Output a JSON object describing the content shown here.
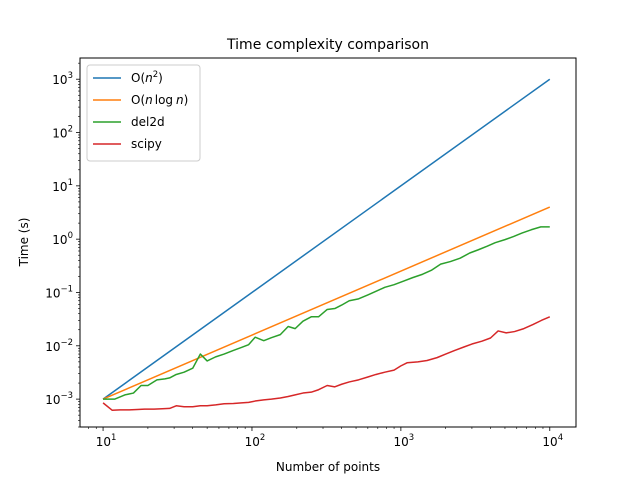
{
  "chart_data": {
    "type": "line",
    "title": "Time complexity comparison",
    "xlabel": "Number of points",
    "ylabel": "Time (s)",
    "xscale": "log",
    "yscale": "log",
    "xlim": [
      7.0,
      15000
    ],
    "ylim": [
      0.0003,
      2500
    ],
    "grid": false,
    "legend_position": "top-left",
    "x_ticks": [
      {
        "value": 10,
        "base": "10",
        "exp": "1"
      },
      {
        "value": 100,
        "base": "10",
        "exp": "2"
      },
      {
        "value": 1000,
        "base": "10",
        "exp": "3"
      },
      {
        "value": 10000,
        "base": "10",
        "exp": "4"
      }
    ],
    "y_ticks": [
      {
        "value": 0.001,
        "base": "10",
        "exp": "−3"
      },
      {
        "value": 0.01,
        "base": "10",
        "exp": "−2"
      },
      {
        "value": 0.1,
        "base": "10",
        "exp": "−1"
      },
      {
        "value": 1,
        "base": "10",
        "exp": "0"
      },
      {
        "value": 10,
        "base": "10",
        "exp": "1"
      },
      {
        "value": 100,
        "base": "10",
        "exp": "2"
      },
      {
        "value": 1000,
        "base": "10",
        "exp": "3"
      }
    ],
    "series": [
      {
        "name": "O(n²)",
        "legend": {
          "pre": "O(",
          "italic": "n",
          "sup": "2",
          "post": ")"
        },
        "color": "#1f77b4",
        "x": [
          10,
          10000
        ],
        "y": [
          0.001,
          1000
        ]
      },
      {
        "name": "O(n log n)",
        "legend": {
          "pre": "O(",
          "italic": "n",
          "mid": "log",
          "italic2": "n",
          "post": ")"
        },
        "color": "#ff7f0e",
        "x": [
          10,
          10000
        ],
        "y": [
          0.001,
          4.0
        ]
      },
      {
        "name": "del2d",
        "legend": {
          "pre": "del2d"
        },
        "color": "#2ca02c",
        "x": [
          10,
          12,
          14,
          16,
          18,
          20,
          23,
          26,
          28,
          31,
          35,
          40,
          45,
          50,
          57,
          65,
          75,
          85,
          95,
          105,
          120,
          135,
          155,
          175,
          195,
          220,
          250,
          280,
          320,
          360,
          400,
          450,
          520,
          600,
          680,
          780,
          900,
          1050,
          1200,
          1400,
          1600,
          1850,
          2150,
          2500,
          2900,
          3300,
          3800,
          4300,
          5000,
          5700,
          6500,
          7500,
          8700,
          10000
        ],
        "y": [
          0.001,
          0.001,
          0.0012,
          0.0013,
          0.0018,
          0.0018,
          0.0023,
          0.0024,
          0.0025,
          0.0029,
          0.0032,
          0.0038,
          0.007,
          0.0052,
          0.0062,
          0.007,
          0.0082,
          0.0093,
          0.0105,
          0.0145,
          0.0125,
          0.0142,
          0.0162,
          0.023,
          0.021,
          0.029,
          0.035,
          0.035,
          0.048,
          0.05,
          0.058,
          0.07,
          0.076,
          0.09,
          0.105,
          0.125,
          0.14,
          0.165,
          0.19,
          0.22,
          0.26,
          0.34,
          0.38,
          0.44,
          0.55,
          0.63,
          0.74,
          0.86,
          0.98,
          1.12,
          1.3,
          1.5,
          1.7,
          1.7
        ]
      },
      {
        "name": "scipy",
        "legend": {
          "pre": "scipy"
        },
        "color": "#d62728",
        "x": [
          10,
          11.5,
          13,
          15,
          17,
          19,
          22,
          25,
          28,
          31,
          35,
          40,
          45,
          50,
          57,
          65,
          75,
          85,
          95,
          105,
          120,
          135,
          155,
          175,
          195,
          220,
          250,
          280,
          320,
          360,
          400,
          450,
          520,
          600,
          680,
          780,
          900,
          1000,
          1100,
          1300,
          1500,
          1750,
          2000,
          2300,
          2650,
          3000,
          3500,
          4000,
          4500,
          5100,
          5800,
          6700,
          7700,
          8800,
          10000
        ],
        "y": [
          0.00085,
          0.00062,
          0.00063,
          0.00063,
          0.00064,
          0.00065,
          0.00065,
          0.00066,
          0.00067,
          0.00075,
          0.00072,
          0.00072,
          0.00075,
          0.00075,
          0.00078,
          0.00082,
          0.00083,
          0.00085,
          0.00087,
          0.00092,
          0.00097,
          0.001,
          0.00105,
          0.00112,
          0.0012,
          0.0013,
          0.00135,
          0.0015,
          0.0018,
          0.0017,
          0.0019,
          0.0021,
          0.0023,
          0.0026,
          0.0029,
          0.0032,
          0.0035,
          0.0042,
          0.0048,
          0.005,
          0.0053,
          0.006,
          0.007,
          0.0082,
          0.0095,
          0.0108,
          0.0122,
          0.014,
          0.019,
          0.0175,
          0.0185,
          0.021,
          0.025,
          0.03,
          0.035
        ]
      }
    ]
  }
}
